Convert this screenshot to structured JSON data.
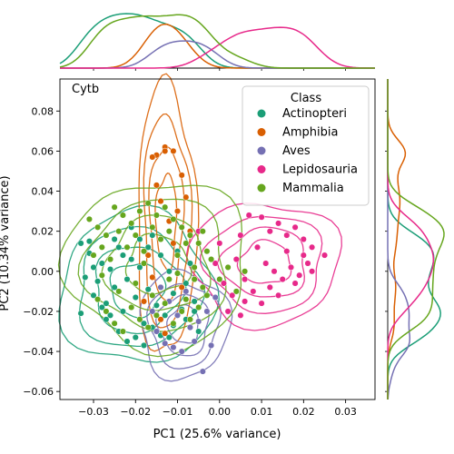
{
  "chart_data": {
    "type": "scatter",
    "panel_label": "Cytb",
    "xlabel": "PC1 (25.6% variance)",
    "ylabel": "PC2 (10.34% variance)",
    "xlim": [
      -0.038,
      0.037
    ],
    "ylim": [
      -0.064,
      0.096
    ],
    "x_ticks": [
      -0.03,
      -0.02,
      -0.01,
      0.0,
      0.01,
      0.02,
      0.03
    ],
    "x_tick_labels": [
      "−0.03",
      "−0.02",
      "−0.01",
      "0.00",
      "0.01",
      "0.02",
      "0.03"
    ],
    "y_ticks": [
      -0.06,
      -0.04,
      -0.02,
      0.0,
      0.02,
      0.04,
      0.06,
      0.08
    ],
    "y_tick_labels": [
      "−0.06",
      "−0.04",
      "−0.02",
      "0.00",
      "0.02",
      "0.04",
      "0.06",
      "0.08"
    ],
    "legend": {
      "title": "Class",
      "position": "upper-right"
    },
    "series": [
      {
        "name": "Actinopteri",
        "color": "#1b9e77",
        "points": [
          [
            -0.033,
            0.014
          ],
          [
            -0.032,
            -0.003
          ],
          [
            -0.031,
            0.009
          ],
          [
            -0.03,
            -0.012
          ],
          [
            -0.029,
            -0.005
          ],
          [
            -0.028,
            0.004
          ],
          [
            -0.027,
            -0.016
          ],
          [
            -0.026,
            0.001
          ],
          [
            -0.025,
            -0.008
          ],
          [
            -0.024,
            0.012
          ],
          [
            -0.023,
            -0.02
          ],
          [
            -0.022,
            -0.004
          ],
          [
            -0.021,
            0.006
          ],
          [
            -0.02,
            -0.013
          ],
          [
            -0.019,
            0.002
          ],
          [
            -0.018,
            -0.026
          ],
          [
            -0.017,
            -0.009
          ],
          [
            -0.016,
            0.018
          ],
          [
            -0.015,
            -0.017
          ],
          [
            -0.014,
            0.008
          ],
          [
            -0.013,
            -0.022
          ],
          [
            -0.012,
            0.0
          ],
          [
            -0.011,
            -0.011
          ],
          [
            -0.01,
            0.01
          ],
          [
            -0.009,
            -0.019
          ],
          [
            -0.008,
            -0.006
          ],
          [
            -0.007,
            0.004
          ],
          [
            -0.006,
            -0.015
          ],
          [
            -0.005,
            -0.03
          ],
          [
            -0.026,
            -0.022
          ],
          [
            -0.024,
            -0.03
          ],
          [
            -0.022,
            -0.035
          ],
          [
            -0.02,
            -0.033
          ],
          [
            -0.018,
            -0.037
          ],
          [
            -0.03,
            0.002
          ],
          [
            -0.028,
            -0.018
          ],
          [
            -0.033,
            -0.021
          ],
          [
            -0.031,
            0.015
          ],
          [
            -0.016,
            -0.028
          ],
          [
            -0.014,
            -0.032
          ],
          [
            -0.012,
            -0.033
          ],
          [
            -0.021,
            0.022
          ],
          [
            -0.019,
            0.016
          ],
          [
            -0.017,
            0.012
          ],
          [
            -0.023,
            0.008
          ],
          [
            -0.025,
            0.016
          ],
          [
            -0.027,
            -0.024
          ],
          [
            -0.011,
            -0.027
          ],
          [
            -0.008,
            -0.024
          ],
          [
            -0.006,
            -0.02
          ]
        ],
        "density_peak_x": -0.018
      },
      {
        "name": "Amphibia",
        "color": "#d95f02",
        "points": [
          [
            -0.013,
            0.062
          ],
          [
            -0.013,
            0.06
          ],
          [
            -0.011,
            0.06
          ],
          [
            -0.015,
            0.058
          ],
          [
            -0.016,
            0.057
          ],
          [
            -0.009,
            0.048
          ],
          [
            -0.008,
            0.037
          ],
          [
            -0.015,
            0.043
          ],
          [
            -0.014,
            0.035
          ],
          [
            -0.012,
            0.025
          ],
          [
            -0.017,
            0.008
          ],
          [
            -0.016,
            -0.003
          ],
          [
            -0.018,
            -0.015
          ],
          [
            -0.014,
            -0.024
          ],
          [
            -0.011,
            0.014
          ],
          [
            -0.009,
            -0.008
          ],
          [
            -0.013,
            -0.031
          ],
          [
            -0.007,
            0.02
          ],
          [
            -0.01,
            0.03
          ]
        ],
        "density_peak_x": -0.012
      },
      {
        "name": "Aves",
        "color": "#7570b3",
        "points": [
          [
            -0.004,
            -0.05
          ],
          [
            -0.009,
            -0.04
          ],
          [
            -0.011,
            -0.038
          ],
          [
            -0.013,
            -0.036
          ],
          [
            -0.015,
            -0.03
          ],
          [
            -0.006,
            -0.035
          ],
          [
            -0.002,
            -0.037
          ],
          [
            -0.007,
            -0.028
          ],
          [
            -0.01,
            -0.022
          ],
          [
            -0.012,
            -0.015
          ],
          [
            -0.008,
            -0.01
          ],
          [
            -0.003,
            -0.02
          ],
          [
            -0.005,
            -0.025
          ],
          [
            -0.001,
            -0.013
          ],
          [
            -0.016,
            -0.02
          ],
          [
            -0.014,
            -0.008
          ]
        ],
        "density_peak_x": -0.012
      },
      {
        "name": "Lepidosauria",
        "color": "#e7298a",
        "points": [
          [
            0.007,
            0.028
          ],
          [
            0.01,
            0.027
          ],
          [
            0.012,
            0.02
          ],
          [
            0.014,
            0.024
          ],
          [
            0.016,
            0.018
          ],
          [
            0.018,
            0.022
          ],
          [
            0.02,
            0.016
          ],
          [
            0.022,
            0.012
          ],
          [
            0.025,
            0.008
          ],
          [
            0.009,
            0.012
          ],
          [
            0.011,
            0.004
          ],
          [
            0.013,
            0.0
          ],
          [
            0.015,
            -0.004
          ],
          [
            0.017,
            0.002
          ],
          [
            0.019,
            -0.002
          ],
          [
            0.021,
            0.004
          ],
          [
            0.012,
            -0.008
          ],
          [
            0.014,
            -0.012
          ],
          [
            0.01,
            -0.016
          ],
          [
            0.008,
            -0.01
          ],
          [
            0.006,
            -0.004
          ],
          [
            0.004,
            0.006
          ],
          [
            0.003,
            -0.012
          ],
          [
            0.005,
            0.018
          ],
          [
            0.02,
            0.008
          ],
          [
            0.016,
            0.01
          ],
          [
            0.005,
            -0.022
          ],
          [
            0.002,
            -0.02
          ],
          [
            0.0,
            0.014
          ],
          [
            0.001,
            -0.006
          ],
          [
            -0.003,
            0.01
          ],
          [
            -0.005,
            0.02
          ],
          [
            -0.001,
            0.004
          ],
          [
            0.018,
            -0.006
          ],
          [
            0.022,
            0.0
          ],
          [
            0.006,
            -0.015
          ]
        ],
        "density_peak_x": 0.008
      },
      {
        "name": "Mammalia",
        "color": "#66a61e",
        "points": [
          [
            -0.031,
            0.026
          ],
          [
            -0.029,
            0.022
          ],
          [
            -0.027,
            0.018
          ],
          [
            -0.025,
            0.032
          ],
          [
            -0.023,
            0.028
          ],
          [
            -0.021,
            0.024
          ],
          [
            -0.019,
            0.03
          ],
          [
            -0.017,
            0.034
          ],
          [
            -0.015,
            0.028
          ],
          [
            -0.013,
            0.032
          ],
          [
            -0.011,
            0.026
          ],
          [
            -0.009,
            0.022
          ],
          [
            -0.007,
            0.018
          ],
          [
            -0.005,
            0.014
          ],
          [
            -0.003,
            0.01
          ],
          [
            -0.03,
            0.008
          ],
          [
            -0.028,
            -0.002
          ],
          [
            -0.026,
            0.006
          ],
          [
            -0.024,
            -0.01
          ],
          [
            -0.022,
            0.012
          ],
          [
            -0.02,
            -0.006
          ],
          [
            -0.018,
            0.004
          ],
          [
            -0.016,
            -0.012
          ],
          [
            -0.014,
            0.016
          ],
          [
            -0.012,
            -0.004
          ],
          [
            -0.01,
            0.008
          ],
          [
            -0.008,
            -0.014
          ],
          [
            -0.006,
            0.002
          ],
          [
            -0.004,
            -0.008
          ],
          [
            -0.002,
            0.006
          ],
          [
            0.0,
            -0.004
          ],
          [
            0.002,
            0.002
          ],
          [
            -0.029,
            -0.014
          ],
          [
            -0.027,
            -0.02
          ],
          [
            -0.025,
            -0.026
          ],
          [
            -0.023,
            -0.03
          ],
          [
            -0.021,
            -0.018
          ],
          [
            -0.019,
            -0.024
          ],
          [
            -0.017,
            -0.028
          ],
          [
            -0.015,
            -0.022
          ],
          [
            -0.013,
            -0.016
          ],
          [
            -0.011,
            -0.026
          ],
          [
            -0.009,
            -0.02
          ],
          [
            -0.007,
            -0.024
          ],
          [
            -0.005,
            -0.018
          ],
          [
            -0.003,
            -0.012
          ],
          [
            -0.024,
            0.02
          ],
          [
            -0.02,
            0.018
          ],
          [
            -0.016,
            0.022
          ],
          [
            -0.012,
            0.02
          ],
          [
            -0.008,
            0.014
          ],
          [
            -0.004,
            0.02
          ],
          [
            0.004,
            -0.01
          ],
          [
            0.006,
            0.0
          ],
          [
            -0.028,
            0.012
          ],
          [
            -0.018,
            0.01
          ],
          [
            -0.01,
            -0.001
          ],
          [
            -0.006,
            -0.004
          ]
        ],
        "density_peak_x": -0.014
      }
    ]
  }
}
